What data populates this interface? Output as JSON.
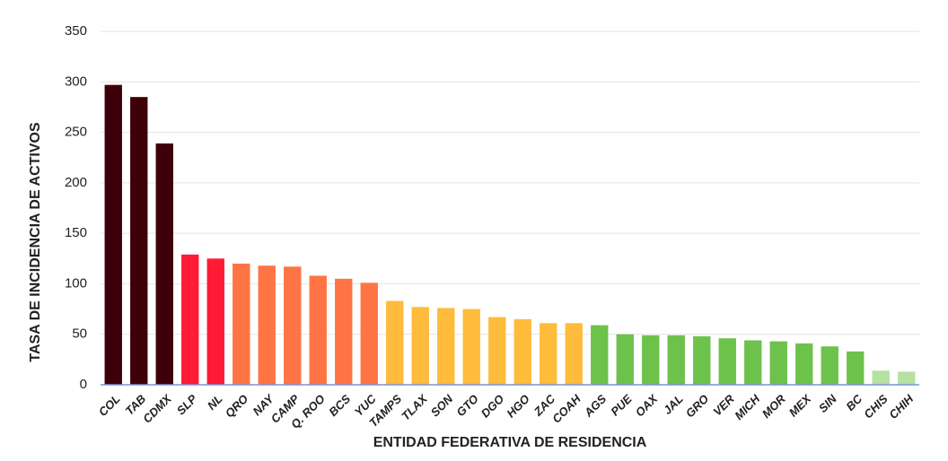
{
  "chart_data": {
    "type": "bar",
    "xlabel": "ENTIDAD FEDERATIVA DE RESIDENCIA",
    "ylabel": "TASA DE INCIDENCIA DE ACTIVOS",
    "categories": [
      "COL",
      "TAB",
      "CDMX",
      "SLP",
      "NL",
      "QRO",
      "NAY",
      "CAMP",
      "Q. ROO",
      "BCS",
      "YUC",
      "TAMPS",
      "TLAX",
      "SON",
      "GTO",
      "DGO",
      "HGO",
      "ZAC",
      "COAH",
      "AGS",
      "PUE",
      "OAX",
      "JAL",
      "GRO",
      "VER",
      "MICH",
      "MOR",
      "MEX",
      "SIN",
      "BC",
      "CHIS",
      "CHIH"
    ],
    "values": [
      297,
      285,
      239,
      129,
      125,
      120,
      118,
      117,
      108,
      105,
      101,
      83,
      77,
      76,
      75,
      67,
      65,
      61,
      61,
      59,
      50,
      49,
      49,
      48,
      46,
      44,
      43,
      41,
      38,
      33,
      14,
      13
    ],
    "colors": [
      "#3d0008",
      "#3d0008",
      "#3d0008",
      "#ff1a35",
      "#ff1a35",
      "#ff7444",
      "#ff7444",
      "#ff7444",
      "#ff7444",
      "#ff7444",
      "#ff7444",
      "#ffbb3c",
      "#ffbb3c",
      "#ffbb3c",
      "#ffbb3c",
      "#ffbb3c",
      "#ffbb3c",
      "#ffbb3c",
      "#ffbb3c",
      "#6dc24b",
      "#6dc24b",
      "#6dc24b",
      "#6dc24b",
      "#6dc24b",
      "#6dc24b",
      "#6dc24b",
      "#6dc24b",
      "#6dc24b",
      "#6dc24b",
      "#6dc24b",
      "#b7e0a3",
      "#b7e0a3"
    ],
    "ylim": [
      0,
      350
    ],
    "yticks": [
      0,
      50,
      100,
      150,
      200,
      250,
      300,
      350
    ],
    "grid": true
  }
}
